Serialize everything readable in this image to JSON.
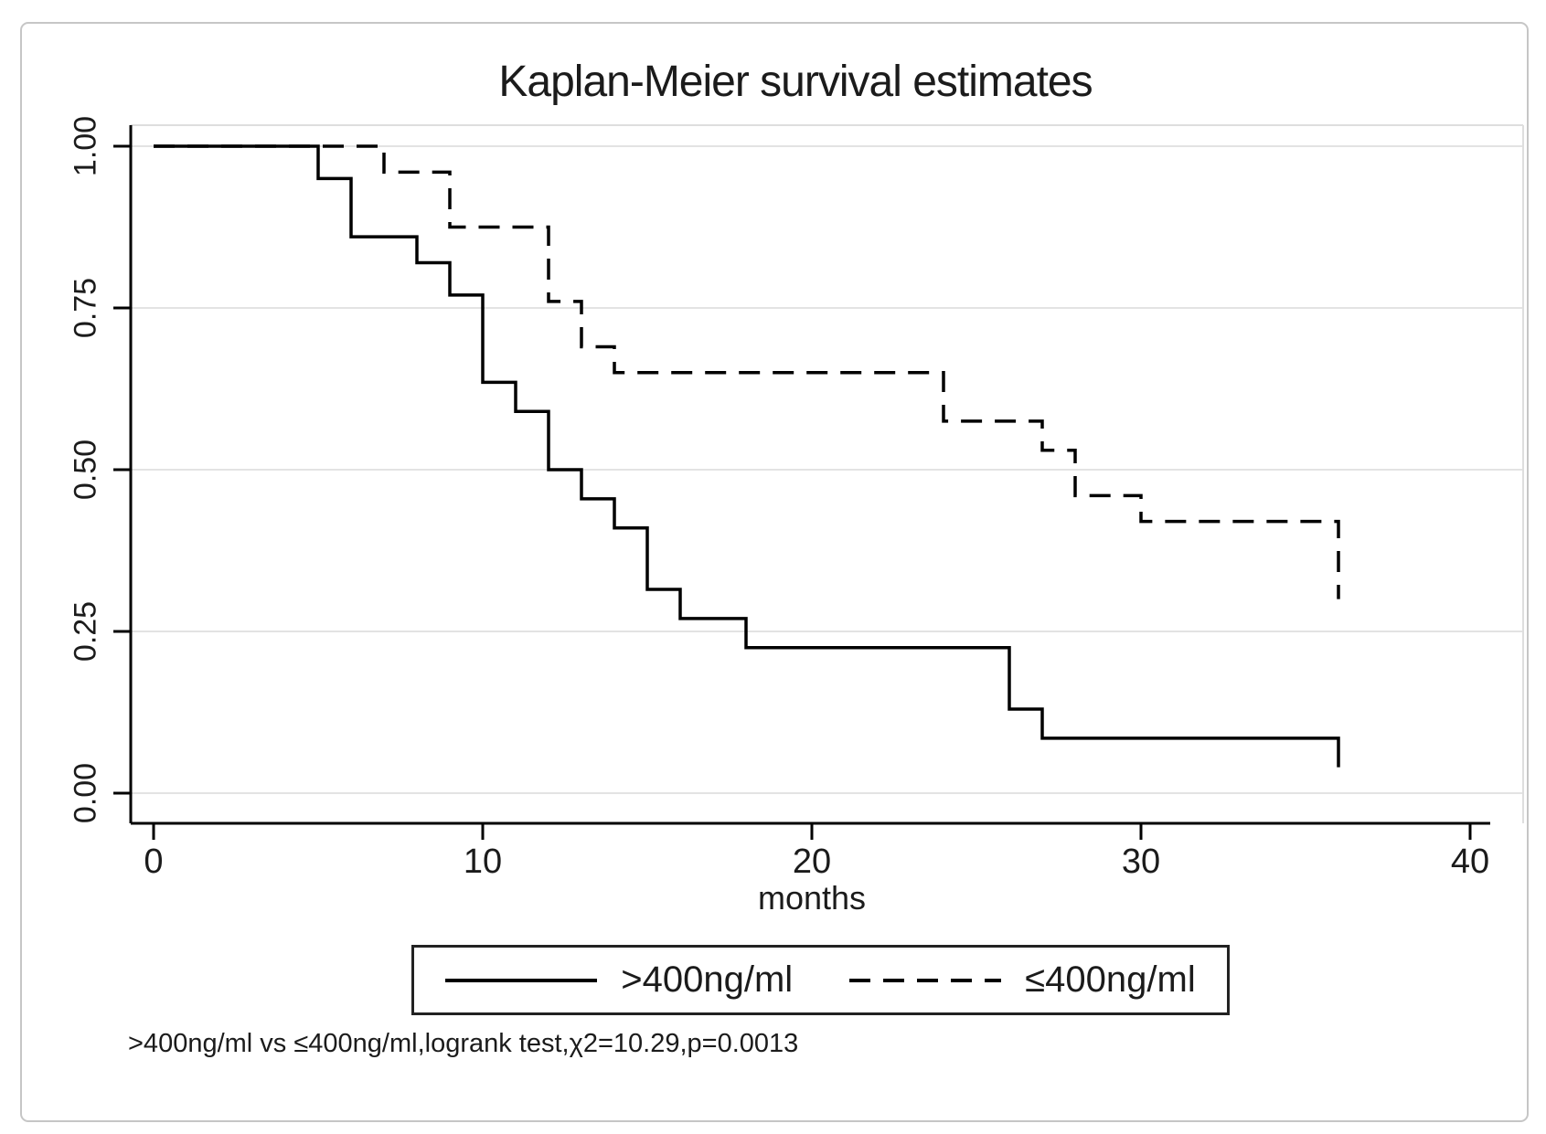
{
  "figure": {
    "background": "#ffffff",
    "border_color": "#c6c6c6"
  },
  "chart_data": {
    "type": "line",
    "subtype": "kaplan-meier-step",
    "title": "Kaplan-Meier survival estimates",
    "xlabel": "months",
    "ylabel": "",
    "xlim": [
      0,
      40
    ],
    "ylim": [
      0.0,
      1.0
    ],
    "xticks": [
      "0",
      "10",
      "20",
      "30",
      "40"
    ],
    "yticks": [
      "0.00",
      "0.25",
      "0.50",
      "0.75",
      "1.00"
    ],
    "grid": "horizontal-light",
    "legend_position": "bottom-center-boxed",
    "series": [
      {
        "name": ">400ng/ml",
        "style": "solid",
        "color": "#000000",
        "steps": [
          [
            0,
            1.0
          ],
          [
            5,
            0.95
          ],
          [
            6,
            0.86
          ],
          [
            8,
            0.82
          ],
          [
            9,
            0.77
          ],
          [
            10,
            0.635
          ],
          [
            11,
            0.59
          ],
          [
            12,
            0.5
          ],
          [
            13,
            0.455
          ],
          [
            14,
            0.41
          ],
          [
            15,
            0.315
          ],
          [
            16,
            0.27
          ],
          [
            18,
            0.225
          ],
          [
            26,
            0.13
          ],
          [
            27,
            0.085
          ],
          [
            36,
            0.04
          ]
        ]
      },
      {
        "name": "≤400ng/ml",
        "style": "dashed",
        "color": "#000000",
        "steps": [
          [
            0,
            1.0
          ],
          [
            7,
            0.96
          ],
          [
            9,
            0.875
          ],
          [
            12,
            0.76
          ],
          [
            13,
            0.69
          ],
          [
            14,
            0.65
          ],
          [
            24,
            0.575
          ],
          [
            27,
            0.53
          ],
          [
            28,
            0.46
          ],
          [
            30,
            0.42
          ],
          [
            36,
            0.3
          ]
        ]
      }
    ],
    "annotation": ">400ng/ml vs ≤400ng/ml,logrank test,χ2=10.29,p=0.0013"
  },
  "legend": {
    "entries": [
      {
        "label": ">400ng/ml",
        "style": "solid"
      },
      {
        "label": "≤400ng/ml",
        "style": "dashed"
      }
    ]
  },
  "colors": {
    "axis": "#000000",
    "curve": "#000000",
    "grid": "#e3e3e3",
    "plot_border": "#dedede",
    "text": "#1b1b1b",
    "background": "#ffffff"
  }
}
